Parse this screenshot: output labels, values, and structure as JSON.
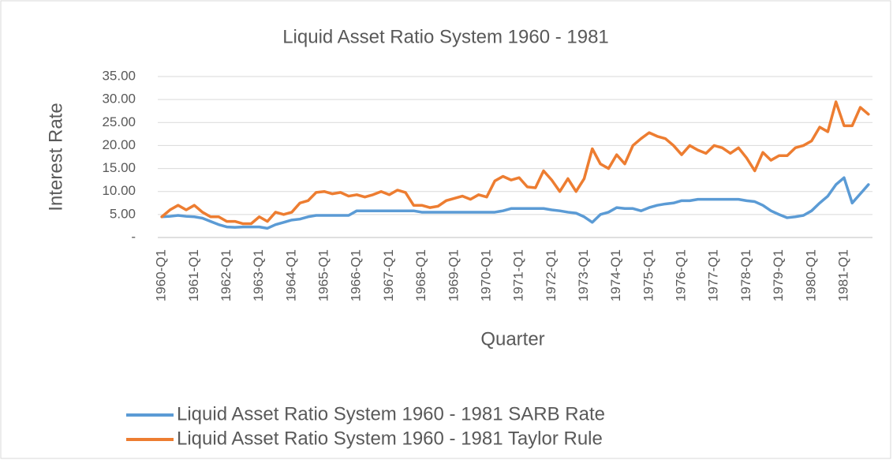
{
  "chart_data": {
    "type": "line",
    "title": "Liquid  Asset Ratio System 1960 - 1981",
    "x_label": "Quarter",
    "y_label": "Interest Rate",
    "categories": [
      "1960-Q1",
      null,
      null,
      null,
      "1961-Q1",
      null,
      null,
      null,
      "1962-Q1",
      null,
      null,
      null,
      "1963-Q1",
      null,
      null,
      null,
      "1964-Q1",
      null,
      null,
      null,
      "1965-Q1",
      null,
      null,
      null,
      "1966-Q1",
      null,
      null,
      null,
      "1967-Q1",
      null,
      null,
      null,
      "1968-Q1",
      null,
      null,
      null,
      "1969-Q1",
      null,
      null,
      null,
      "1970-Q1",
      null,
      null,
      null,
      "1971-Q1",
      null,
      null,
      null,
      "1972-Q1",
      null,
      null,
      null,
      "1973-Q1",
      null,
      null,
      null,
      "1974-Q1",
      null,
      null,
      null,
      "1975-Q1",
      null,
      null,
      null,
      "1976-Q1",
      null,
      null,
      null,
      "1977-Q1",
      null,
      null,
      null,
      "1978-Q1",
      null,
      null,
      null,
      "1979-Q1",
      null,
      null,
      null,
      "1980-Q1",
      null,
      null,
      null,
      "1981-Q1",
      null,
      null,
      null
    ],
    "series": [
      {
        "name": "Liquid Asset Ratio System 1960 - 1981 SARB Rate",
        "color": "#5b9bd5",
        "values": [
          4.5,
          4.6,
          4.8,
          4.6,
          4.5,
          4.2,
          3.5,
          2.8,
          2.3,
          2.2,
          2.3,
          2.3,
          2.3,
          2.0,
          2.8,
          3.3,
          3.8,
          4.0,
          4.5,
          4.8,
          4.8,
          4.8,
          4.8,
          4.8,
          5.8,
          5.8,
          5.8,
          5.8,
          5.8,
          5.8,
          5.8,
          5.8,
          5.5,
          5.5,
          5.5,
          5.5,
          5.5,
          5.5,
          5.5,
          5.5,
          5.5,
          5.5,
          5.8,
          6.3,
          6.3,
          6.3,
          6.3,
          6.3,
          6.0,
          5.8,
          5.5,
          5.3,
          4.5,
          3.3,
          5.0,
          5.5,
          6.5,
          6.3,
          6.3,
          5.8,
          6.5,
          7.0,
          7.3,
          7.5,
          8.0,
          8.0,
          8.3,
          8.3,
          8.3,
          8.3,
          8.3,
          8.3,
          8.0,
          7.8,
          7.0,
          5.8,
          5.0,
          4.3,
          4.5,
          4.8,
          5.8,
          7.5,
          9.0,
          11.5,
          13.0,
          7.5,
          9.5,
          11.5
        ]
      },
      {
        "name": "Liquid Asset Ratio System 1960 - 1981 Taylor Rule",
        "color": "#ed7d31",
        "values": [
          4.5,
          6.0,
          7.0,
          6.0,
          7.0,
          5.5,
          4.5,
          4.5,
          3.5,
          3.5,
          3.0,
          3.0,
          4.5,
          3.5,
          5.5,
          5.0,
          5.5,
          7.5,
          8.0,
          9.8,
          10.0,
          9.5,
          9.8,
          9.0,
          9.3,
          8.8,
          9.3,
          10.0,
          9.3,
          10.3,
          9.8,
          7.0,
          7.0,
          6.5,
          6.8,
          8.0,
          8.5,
          9.0,
          8.3,
          9.3,
          8.8,
          12.3,
          13.3,
          12.5,
          13.0,
          11.0,
          10.8,
          14.5,
          12.5,
          10.0,
          12.8,
          10.0,
          12.8,
          19.3,
          16.0,
          15.0,
          18.0,
          16.0,
          20.0,
          21.5,
          22.8,
          22.0,
          21.5,
          20.0,
          18.0,
          20.0,
          19.0,
          18.3,
          20.0,
          19.5,
          18.3,
          19.5,
          17.3,
          14.5,
          18.5,
          16.8,
          17.8,
          17.8,
          19.5,
          20.0,
          21.0,
          24.0,
          23.0,
          29.5,
          24.3,
          24.3,
          28.3,
          26.8
        ]
      }
    ],
    "ylim": [
      0,
      35
    ],
    "yticks": [
      {
        "value": 0,
        "label": "-"
      },
      {
        "value": 5,
        "label": "5.00"
      },
      {
        "value": 10,
        "label": "10.00"
      },
      {
        "value": 15,
        "label": "15.00"
      },
      {
        "value": 20,
        "label": "20.00"
      },
      {
        "value": 25,
        "label": "25.00"
      },
      {
        "value": 30,
        "label": "30.00"
      },
      {
        "value": 35,
        "label": "35.00"
      }
    ],
    "grid": true,
    "legend": "bottom"
  }
}
